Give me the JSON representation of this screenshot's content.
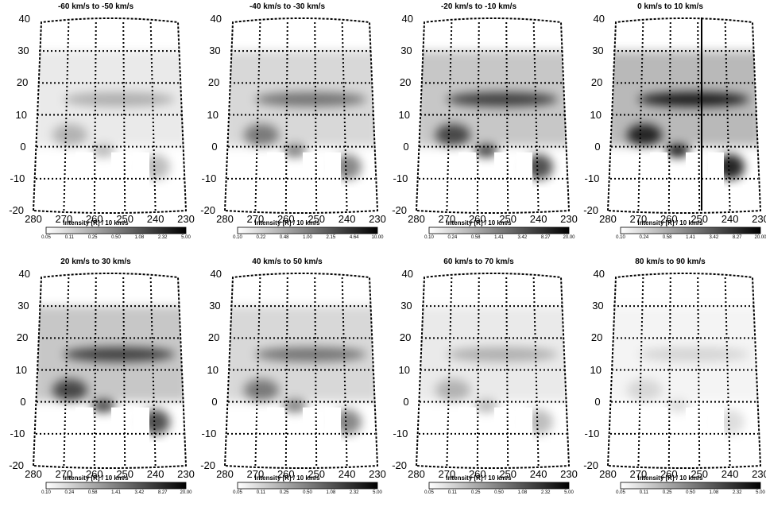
{
  "figure": {
    "colorbar_label": "Intensity [R] / 10 km/s",
    "panels": [
      {
        "title": "-60 km/s to -50 km/s",
        "colorbar_ticks": [
          "0.05",
          "0.11",
          "0.25",
          "0.50",
          "1.08",
          "2.32",
          "5.00"
        ],
        "emission": "faint"
      },
      {
        "title": "-40 km/s to -30 km/s",
        "colorbar_ticks": [
          "0.10",
          "0.22",
          "0.48",
          "1.00",
          "2.15",
          "4.64",
          "10.00"
        ],
        "emission": "moderate"
      },
      {
        "title": "-20 km/s to -10 km/s",
        "colorbar_ticks": [
          "0.10",
          "0.24",
          "0.58",
          "1.41",
          "3.42",
          "8.27",
          "20.00"
        ],
        "emission": "strong"
      },
      {
        "title": "0 km/s to 10 km/s",
        "colorbar_ticks": [
          "0.10",
          "0.24",
          "0.58",
          "1.41",
          "3.42",
          "8.27",
          "20.00"
        ],
        "emission": "strongest"
      },
      {
        "title": "20 km/s to 30 km/s",
        "colorbar_ticks": [
          "0.10",
          "0.24",
          "0.58",
          "1.41",
          "3.42",
          "8.27",
          "20.00"
        ],
        "emission": "strong"
      },
      {
        "title": "40 km/s to 50 km/s",
        "colorbar_ticks": [
          "0.05",
          "0.11",
          "0.25",
          "0.50",
          "1.08",
          "2.32",
          "5.00"
        ],
        "emission": "moderate"
      },
      {
        "title": "60 km/s to 70 km/s",
        "colorbar_ticks": [
          "0.05",
          "0.11",
          "0.25",
          "0.50",
          "1.08",
          "2.32",
          "5.00"
        ],
        "emission": "faint"
      },
      {
        "title": "80 km/s to 90 km/s",
        "colorbar_ticks": [
          "0.05",
          "0.11",
          "0.25",
          "0.50",
          "1.08",
          "2.32",
          "5.00"
        ],
        "emission": "faintest"
      }
    ]
  },
  "chart_data": {
    "type": "heatmap",
    "colormap": "grayscale (white = low, black = high)",
    "x_axis": {
      "ticks": [
        "280",
        "270",
        "260",
        "250",
        "240",
        "230"
      ],
      "range": [
        280,
        230
      ],
      "reversed": true
    },
    "y_axis": {
      "ticks": [
        "40",
        "30",
        "20",
        "10",
        "0",
        "-10",
        "-20"
      ],
      "range": [
        -20,
        40
      ]
    },
    "grid": true,
    "colorbar": "below each panel, horizontal"
  }
}
